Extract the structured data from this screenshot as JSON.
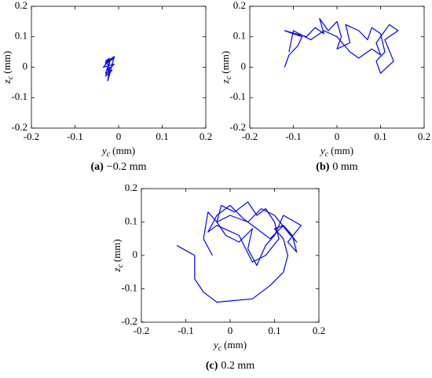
{
  "chart_data": [
    {
      "type": "line",
      "caption_tag": "(a)",
      "caption": "−0.2 mm",
      "xlabel_var": "y",
      "xlabel_sub": "c",
      "xlabel_unit": "(mm)",
      "ylabel_var": "z",
      "ylabel_sub": "c",
      "ylabel_unit": "(mm)",
      "xlim": [
        -0.2,
        0.2
      ],
      "ylim": [
        -0.2,
        0.2
      ],
      "xticks": [
        -0.2,
        -0.1,
        0,
        0.1,
        0.2
      ],
      "yticks": [
        -0.2,
        -0.1,
        0,
        0.1,
        0.2
      ],
      "color": "#0000ff",
      "x": [
        -0.02,
        -0.03,
        -0.01,
        -0.03,
        -0.02,
        -0.035,
        -0.01,
        -0.025,
        -0.02,
        -0.03,
        -0.015,
        -0.03,
        -0.02,
        -0.025,
        -0.02,
        -0.01,
        -0.03,
        -0.02
      ],
      "values": [
        0.03,
        0.02,
        0.03,
        0.01,
        0.025,
        0,
        0.01,
        -0.01,
        0.02,
        -0.02,
        -0.01,
        -0.03,
        0,
        -0.045,
        -0.02,
        0.035,
        0.015,
        0.005
      ]
    },
    {
      "type": "line",
      "caption_tag": "(b)",
      "caption": "0 mm",
      "xlabel_var": "y",
      "xlabel_sub": "c",
      "xlabel_unit": "(mm)",
      "ylabel_var": "z",
      "ylabel_sub": "c",
      "ylabel_unit": "(mm)",
      "xlim": [
        -0.2,
        0.2
      ],
      "ylim": [
        -0.2,
        0.2
      ],
      "xticks": [
        -0.2,
        -0.1,
        0,
        0.1,
        0.2
      ],
      "yticks": [
        -0.2,
        -0.1,
        0,
        0.1,
        0.2
      ],
      "color": "#0000ff",
      "x": [
        -0.12,
        -0.11,
        -0.09,
        -0.08,
        -0.1,
        -0.12,
        -0.07,
        -0.05,
        -0.03,
        -0.04,
        -0.02,
        0,
        0.01,
        0,
        0.03,
        0.02,
        0.05,
        0.07,
        0.08,
        0.1,
        0.11,
        0.09,
        0.1,
        0.13,
        0.11,
        0.14,
        0.12,
        0.09,
        0.1,
        0.08,
        0.05,
        0.03,
        0,
        -0.03,
        -0.06,
        -0.1,
        -0.11
      ],
      "values": [
        0,
        0.04,
        0.07,
        0.1,
        0.11,
        0.12,
        0.1,
        0.13,
        0.11,
        0.16,
        0.12,
        0.15,
        0.1,
        0.06,
        0.08,
        0.14,
        0.12,
        0.09,
        0.13,
        0.11,
        0.05,
        0.02,
        -0.02,
        0.02,
        0.09,
        0.12,
        0.14,
        0.08,
        0.04,
        0.06,
        0.03,
        0.05,
        0.1,
        0.12,
        0.09,
        0.12,
        0.05
      ]
    },
    {
      "type": "line",
      "caption_tag": "(c)",
      "caption": "0.2 mm",
      "xlabel_var": "y",
      "xlabel_sub": "c",
      "xlabel_unit": "(mm)",
      "ylabel_var": "z",
      "ylabel_sub": "c",
      "ylabel_unit": "(mm)",
      "xlim": [
        -0.2,
        0.2
      ],
      "ylim": [
        -0.2,
        0.2
      ],
      "xticks": [
        -0.2,
        -0.1,
        0,
        0.1,
        0.2
      ],
      "yticks": [
        -0.2,
        -0.1,
        0,
        0.1,
        0.2
      ],
      "color": "#0000ff",
      "x": [
        -0.12,
        -0.08,
        -0.08,
        -0.06,
        -0.03,
        0.05,
        0.09,
        0.12,
        0.13,
        0.12,
        0.1,
        0.12,
        0.14,
        0.15,
        0.13,
        0.16,
        0.12,
        0.1,
        0.08,
        0.06,
        0.04,
        0.05,
        0.02,
        -0.01,
        -0.03,
        -0.02,
        0.01,
        0.04,
        0.06,
        0.08,
        0.1,
        0.11,
        0.08,
        0.05,
        0.02,
        -0.03,
        -0.05,
        -0.03,
        0,
        0.03,
        0.06,
        0.09,
        0.12,
        0.15,
        0.13,
        0.1,
        0.07,
        0.04,
        0,
        -0.03,
        -0.05,
        -0.06,
        -0.04
      ],
      "values": [
        0.03,
        0,
        -0.07,
        -0.11,
        -0.14,
        -0.13,
        -0.09,
        -0.05,
        0,
        0.05,
        0.08,
        0.09,
        0.06,
        0.01,
        0.04,
        0.09,
        0.12,
        0.06,
        0.03,
        -0.03,
        0.02,
        0.08,
        0.04,
        0.06,
        0.1,
        0.15,
        0.13,
        0.16,
        0.12,
        0.14,
        0.1,
        0.05,
        0,
        -0.02,
        0.06,
        0.09,
        0.07,
        0.12,
        0.15,
        0.11,
        0.08,
        0.05,
        0.09,
        0.04,
        0.07,
        0.12,
        0.14,
        0.1,
        0.12,
        0.1,
        0.13,
        0.05,
        0
      ]
    }
  ]
}
